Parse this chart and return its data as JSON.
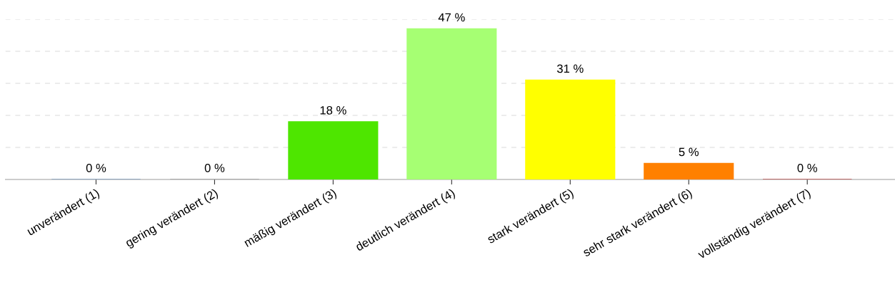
{
  "chart_data": {
    "type": "bar",
    "categories": [
      "unverändert (1)",
      "gering verändert (2)",
      "mäßig verändert (3)",
      "deutlich verändert (4)",
      "stark verändert (5)",
      "sehr stark verändert (6)",
      "vollständig verändert (7)"
    ],
    "values": [
      0,
      0,
      18,
      47,
      31,
      5,
      0
    ],
    "value_labels": [
      "0 %",
      "0 %",
      "18 %",
      "47 %",
      "31 %",
      "5 %",
      "0 %"
    ],
    "colors": [
      "#7f9fbf",
      "#a0a0a0",
      "#4ee600",
      "#a6ff73",
      "#ffff00",
      "#ff8000",
      "#c0504d"
    ],
    "ylim": [
      0,
      50
    ],
    "yticks": [
      {
        "value": 10,
        "label": null
      },
      {
        "value": 20,
        "label": null
      },
      {
        "value": 30,
        "label": null
      },
      {
        "value": 40,
        "label": null
      },
      {
        "value": 50,
        "label": null
      }
    ],
    "grid": "y",
    "tick_labels": "x"
  }
}
